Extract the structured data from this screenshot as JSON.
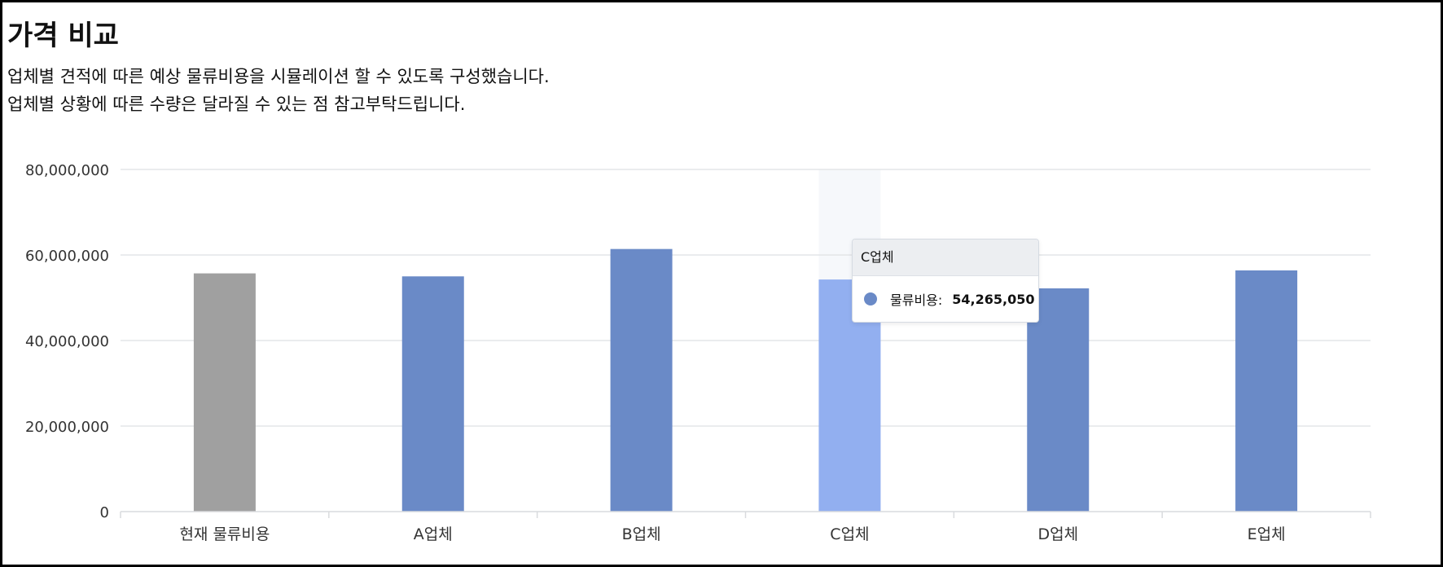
{
  "header": {
    "title": "가격 비교",
    "description_line1": "업체별 견적에 따른 예상 물류비용을 시뮬레이션 할 수 있도록 구성했습니다.",
    "description_line2": "업체별 상황에 따른 수량은 달라질 수 있는 점 참고부탁드립니다."
  },
  "chart_data": {
    "type": "bar",
    "categories": [
      "현재 물류비용",
      "A업체",
      "B업체",
      "C업체",
      "D업체",
      "E업체"
    ],
    "series": [
      {
        "name": "물류비용",
        "values": [
          55700000,
          55000000,
          61400000,
          54265050,
          52200000,
          56400000
        ]
      }
    ],
    "ylim": [
      0,
      80000000
    ],
    "yticks": [
      0,
      20000000,
      40000000,
      60000000,
      80000000
    ],
    "ytick_labels": [
      "0",
      "20,000,000",
      "40,000,000",
      "60,000,000",
      "80,000,000"
    ],
    "grid": true,
    "highlighted_index": 3,
    "colors": {
      "default_bar": "#6a8ac7",
      "baseline_bar": "#a0a0a0",
      "highlight_bar": "#92aff0",
      "highlight_band": "#f6f8fb",
      "grid": "#e3e5e8",
      "axis": "#d9dbde",
      "text": "#333333"
    }
  },
  "tooltip": {
    "title": "C업체",
    "label": "물류비용:",
    "value": "54,265,050",
    "dot_color": "#6a8ac7"
  }
}
